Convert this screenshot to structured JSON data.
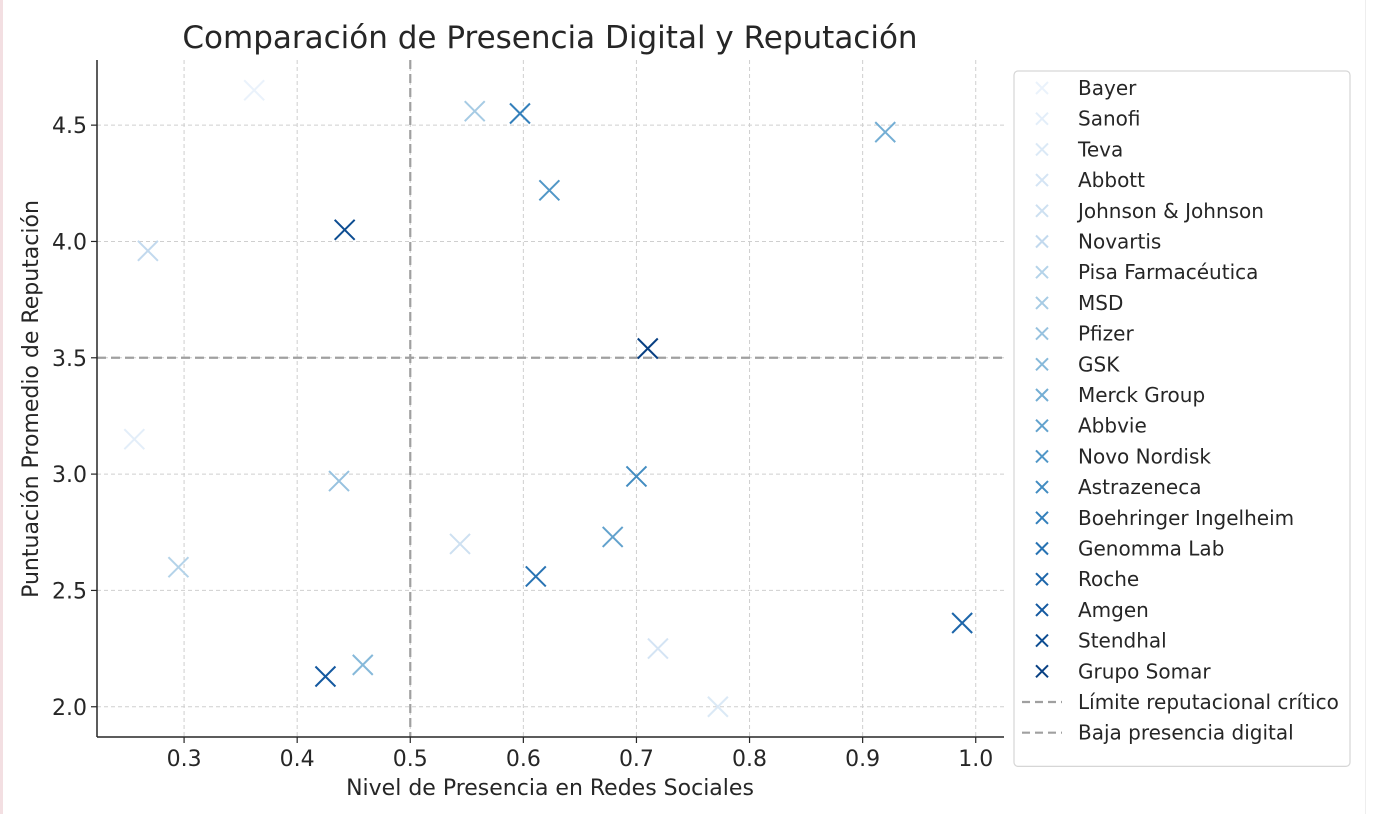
{
  "chart_data": {
    "type": "scatter",
    "title": "Comparación de Presencia Digital y Reputación",
    "xlabel": "Nivel de Presencia en Redes Sociales",
    "ylabel": "Puntuación Promedio de Reputación",
    "xlim": [
      0.223,
      1.025
    ],
    "ylim": [
      1.87,
      4.78
    ],
    "xticks": [
      0.3,
      0.4,
      0.5,
      0.6,
      0.7,
      0.8,
      0.9,
      1.0
    ],
    "xtick_labels": [
      "0.3",
      "0.4",
      "0.5",
      "0.6",
      "0.7",
      "0.8",
      "0.9",
      "1.0"
    ],
    "yticks": [
      2.0,
      2.5,
      3.0,
      3.5,
      4.0,
      4.5
    ],
    "ytick_labels": [
      "2.0",
      "2.5",
      "3.0",
      "3.5",
      "4.0",
      "4.5"
    ],
    "grid": true,
    "legend_position": "right",
    "series": [
      {
        "name": "Bayer",
        "x": 0.362,
        "y": 4.65,
        "color": "#eaf2fb"
      },
      {
        "name": "Sanofi",
        "x": 0.256,
        "y": 3.15,
        "color": "#e3eef9"
      },
      {
        "name": "Teva",
        "x": 0.772,
        "y": 2.0,
        "color": "#dbe9f6"
      },
      {
        "name": "Abbott",
        "x": 0.719,
        "y": 2.25,
        "color": "#d4e4f4"
      },
      {
        "name": "Johnson & Johnson",
        "x": 0.544,
        "y": 2.7,
        "color": "#cde0f1"
      },
      {
        "name": "Novartis",
        "x": 0.268,
        "y": 3.96,
        "color": "#c2d9ee"
      },
      {
        "name": "Pisa Farmacéutica",
        "x": 0.295,
        "y": 2.6,
        "color": "#b4d3e9"
      },
      {
        "name": "MSD",
        "x": 0.557,
        "y": 4.56,
        "color": "#a6cbe4"
      },
      {
        "name": "Pfizer",
        "x": 0.437,
        "y": 2.97,
        "color": "#97c2df"
      },
      {
        "name": "GSK",
        "x": 0.458,
        "y": 2.18,
        "color": "#86b9da"
      },
      {
        "name": "Merck Group",
        "x": 0.92,
        "y": 4.47,
        "color": "#74aed4"
      },
      {
        "name": "Abbvie",
        "x": 0.679,
        "y": 2.73,
        "color": "#62a2cd"
      },
      {
        "name": "Novo Nordisk",
        "x": 0.623,
        "y": 4.22,
        "color": "#5197c7"
      },
      {
        "name": "Astrazeneca",
        "x": 0.7,
        "y": 2.99,
        "color": "#428cc1"
      },
      {
        "name": "Boehringer Ingelheim",
        "x": 0.597,
        "y": 4.55,
        "color": "#3480bb"
      },
      {
        "name": "Genomma Lab",
        "x": 0.611,
        "y": 2.56,
        "color": "#2873b3"
      },
      {
        "name": "Roche",
        "x": 0.988,
        "y": 2.36,
        "color": "#1d66aa"
      },
      {
        "name": "Amgen",
        "x": 0.425,
        "y": 2.13,
        "color": "#1459a0"
      },
      {
        "name": "Stendhal",
        "x": 0.442,
        "y": 4.05,
        "color": "#0d4d92"
      },
      {
        "name": "Grupo Somar",
        "x": 0.71,
        "y": 3.54,
        "color": "#084083"
      }
    ],
    "reference_lines": [
      {
        "name": "Límite reputacional crítico",
        "orientation": "horizontal",
        "value": 3.5,
        "color": "#a0a0a0"
      },
      {
        "name": "Baja presencia digital",
        "orientation": "vertical",
        "value": 0.5,
        "color": "#a0a0a0"
      }
    ]
  }
}
